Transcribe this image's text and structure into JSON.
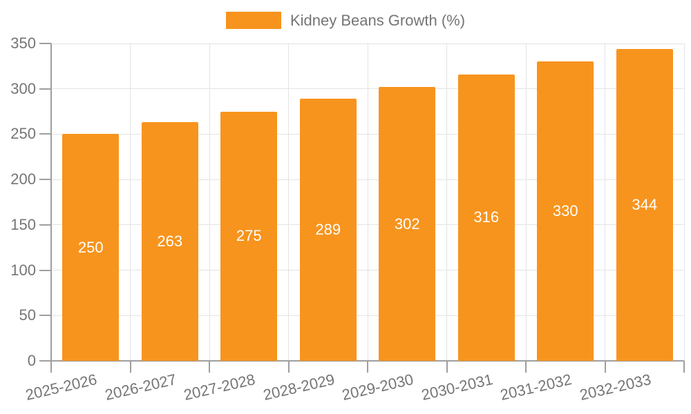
{
  "legend": {
    "label": "Kidney Beans Growth (%)",
    "swatch_color": "#F7941E"
  },
  "chart_data": {
    "type": "bar",
    "title": "",
    "xlabel": "",
    "ylabel": "",
    "series_name": "Kidney Beans Growth (%)",
    "categories": [
      "2025-2026",
      "2026-2027",
      "2027-2028",
      "2028-2029",
      "2029-2030",
      "2030-2031",
      "2031-2032",
      "2032-2033"
    ],
    "values": [
      250,
      263,
      275,
      289,
      302,
      316,
      330,
      344
    ],
    "value_labels": [
      "250",
      "263",
      "275",
      "289",
      "302",
      "316",
      "330",
      "344"
    ],
    "ylim": [
      0,
      350
    ],
    "yticks": [
      0,
      50,
      100,
      150,
      200,
      250,
      300,
      350
    ],
    "ytick_labels": [
      "0",
      "50",
      "100",
      "150",
      "200",
      "250",
      "300",
      "350"
    ],
    "grid": true,
    "legend_position": "top-center",
    "x_label_rotation_deg": -13,
    "colors": {
      "bar": "#F7941E",
      "value_label_text": "#FFFFFF",
      "axis_text": "#757575",
      "axis_line": "#9E9E9E",
      "grid_line": "#E3E3E3",
      "background": "#FFFFFF"
    }
  }
}
